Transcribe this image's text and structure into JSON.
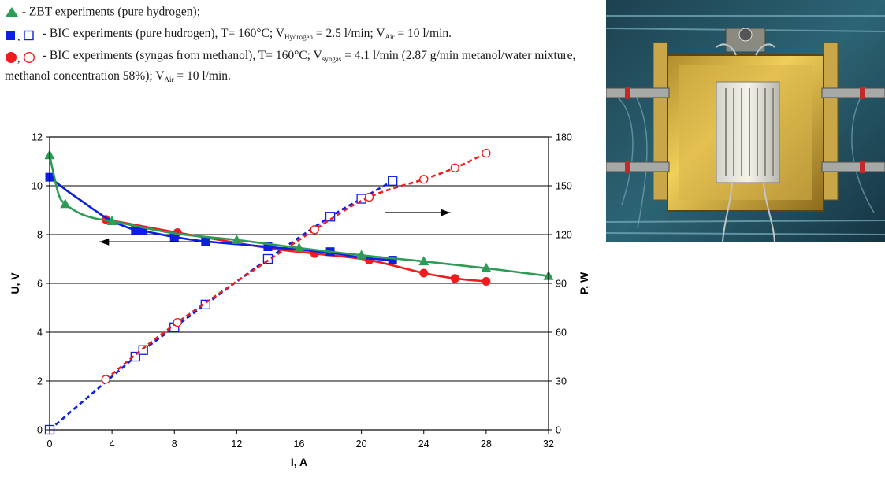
{
  "legend": {
    "zbt": "- ZBT experiments (pure hydrogen);",
    "bic_h2_a": "- BIC experiments (pure hudrogen), T= 160°C; V",
    "bic_h2_sub1": "Hydrogen",
    "bic_h2_b": " = 2.5 l/min; V",
    "bic_h2_sub2": "Air",
    "bic_h2_c": " = 10 l/min.",
    "bic_sg_a": "- BIC experiments (syngas from methanol), T= 160°C; V",
    "bic_sg_sub1": "syngas",
    "bic_sg_b": " = 4.1 l/min (2.87 g/min metanol/water mixture, methanol concentration 58%); V",
    "bic_sg_sub2": "Air",
    "bic_sg_c": " = 10 l/min."
  },
  "colors": {
    "green": "#2e9b57",
    "blue": "#0d1fe0",
    "red": "#ee1c1c",
    "grid": "#000000"
  },
  "chart_data": {
    "type": "line",
    "xlabel": "I, A",
    "ylabel_left": "U, V",
    "ylabel_right": "P, W",
    "xlim": [
      0,
      32
    ],
    "ylim_left": [
      0,
      12
    ],
    "ylim_right": [
      0,
      180
    ],
    "x_ticks": [
      0,
      4,
      8,
      12,
      16,
      20,
      24,
      28,
      32
    ],
    "y_left_ticks": [
      0,
      2,
      4,
      6,
      8,
      10,
      12
    ],
    "y_right_ticks": [
      0,
      30,
      60,
      90,
      120,
      150,
      180
    ],
    "grid": "horizontal",
    "series": [
      {
        "name": "ZBT experiments (pure hydrogen)",
        "axis": "left",
        "marker": "triangle-filled",
        "color": "#2e9b57",
        "line": "solid",
        "curve": [
          [
            0,
            11.25
          ],
          [
            0.25,
            10.5
          ],
          [
            0.6,
            9.6
          ],
          [
            1,
            9.25
          ],
          [
            2,
            8.85
          ],
          [
            3,
            8.65
          ],
          [
            4,
            8.55
          ],
          [
            8,
            8.05
          ],
          [
            12,
            7.78
          ],
          [
            16,
            7.45
          ],
          [
            20,
            7.15
          ],
          [
            24,
            6.9
          ],
          [
            28,
            6.62
          ],
          [
            32,
            6.3
          ]
        ],
        "points": [
          [
            0,
            11.25
          ],
          [
            1,
            9.25
          ],
          [
            4,
            8.55
          ],
          [
            12,
            7.78
          ],
          [
            16,
            7.45
          ],
          [
            20,
            7.15
          ],
          [
            24,
            6.9
          ],
          [
            28,
            6.62
          ],
          [
            32,
            6.3
          ]
        ]
      },
      {
        "name": "BIC experiments (pure hudrogen) U",
        "axis": "left",
        "marker": "square-filled",
        "color": "#0d1fe0",
        "line": "solid",
        "curve": [
          [
            0,
            10.35
          ],
          [
            1,
            9.85
          ],
          [
            2,
            9.4
          ],
          [
            3,
            8.95
          ],
          [
            4,
            8.55
          ],
          [
            5.5,
            8.18
          ],
          [
            6,
            8.15
          ],
          [
            8,
            7.9
          ],
          [
            10,
            7.72
          ],
          [
            14,
            7.5
          ],
          [
            18,
            7.25
          ],
          [
            20,
            7.05
          ],
          [
            22,
            6.95
          ]
        ],
        "points": [
          [
            0,
            10.35
          ],
          [
            5.5,
            8.18
          ],
          [
            6,
            8.15
          ],
          [
            8,
            7.9
          ],
          [
            10,
            7.72
          ],
          [
            14,
            7.5
          ],
          [
            18,
            7.3
          ],
          [
            22,
            6.95
          ]
        ]
      },
      {
        "name": "BIC experiments (syngas from methanol) U",
        "axis": "left",
        "marker": "circle-filled",
        "color": "#ee1c1c",
        "line": "solid",
        "curve": [
          [
            3.6,
            8.62
          ],
          [
            8.2,
            8.08
          ],
          [
            14,
            7.45
          ],
          [
            17,
            7.22
          ],
          [
            20.5,
            6.95
          ],
          [
            24,
            6.42
          ],
          [
            26,
            6.2
          ],
          [
            28,
            6.08
          ]
        ],
        "points": [
          [
            3.6,
            8.62
          ],
          [
            8.2,
            8.08
          ],
          [
            17,
            7.22
          ],
          [
            20.5,
            6.95
          ],
          [
            24,
            6.42
          ],
          [
            26,
            6.2
          ],
          [
            28,
            6.08
          ]
        ]
      },
      {
        "name": "BIC experiments (pure hudrogen) P",
        "axis": "right",
        "marker": "square-open",
        "color": "#0d1fe0",
        "line": "dashed",
        "curve": [
          [
            0,
            0
          ],
          [
            5.5,
            45
          ],
          [
            6,
            49
          ],
          [
            8,
            63
          ],
          [
            10,
            77
          ],
          [
            14,
            105
          ],
          [
            18,
            131
          ],
          [
            20,
            142
          ],
          [
            22,
            153
          ]
        ],
        "points": [
          [
            0,
            0
          ],
          [
            5.5,
            45
          ],
          [
            6,
            49
          ],
          [
            8,
            63
          ],
          [
            10,
            77
          ],
          [
            14,
            105
          ],
          [
            18,
            131
          ],
          [
            20,
            142
          ],
          [
            22,
            153
          ]
        ]
      },
      {
        "name": "BIC experiments (syngas from methanol) P",
        "axis": "right",
        "marker": "circle-open",
        "color": "#ee1c1c",
        "line": "dashed",
        "curve": [
          [
            3.6,
            31
          ],
          [
            8.2,
            66
          ],
          [
            17,
            123
          ],
          [
            20.5,
            143
          ],
          [
            24,
            154
          ],
          [
            26,
            161
          ],
          [
            28,
            170
          ]
        ],
        "points": [
          [
            3.6,
            31
          ],
          [
            8.2,
            66
          ],
          [
            17,
            123
          ],
          [
            20.5,
            143
          ],
          [
            24,
            154
          ],
          [
            26,
            161
          ],
          [
            28,
            170
          ]
        ]
      }
    ],
    "annotations": [
      {
        "type": "arrow",
        "direction": "left",
        "from": [
          9.5,
          7.7
        ],
        "to": [
          3.2,
          7.7
        ]
      },
      {
        "type": "arrow",
        "direction": "right",
        "from": [
          21.5,
          8.9
        ],
        "to": [
          25.7,
          8.9
        ]
      }
    ]
  },
  "photo": {
    "subject": "fuel-cell-stack-photo"
  }
}
